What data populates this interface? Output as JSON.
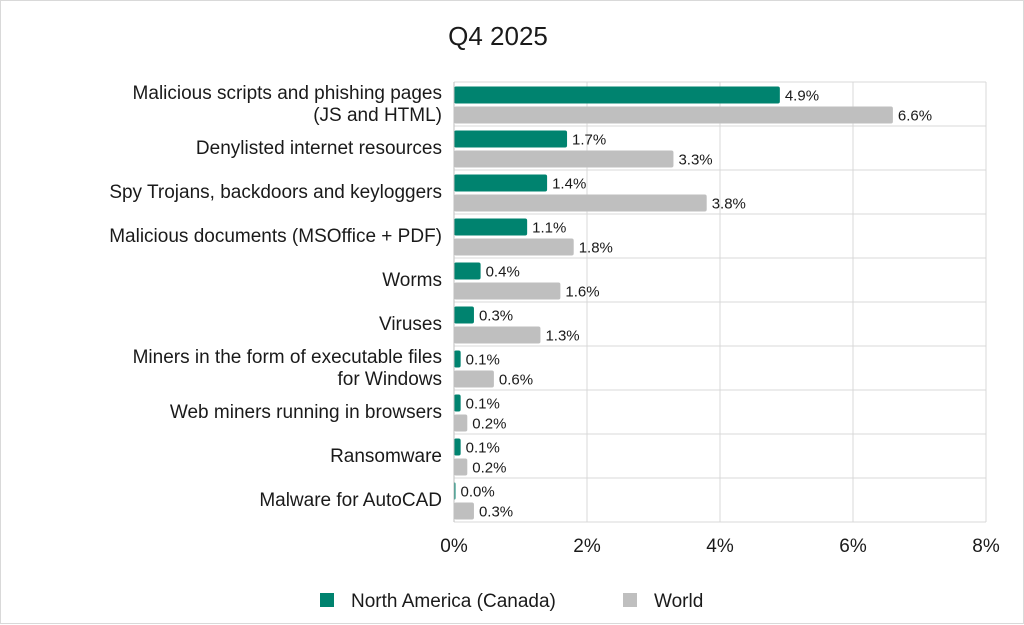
{
  "chart_data": {
    "type": "bar",
    "orientation": "horizontal",
    "title": "Q4 2025",
    "categories": [
      [
        "Malicious scripts and phishing pages",
        "(JS and HTML)"
      ],
      [
        "Denylisted internet resources"
      ],
      [
        "Spy Trojans, backdoors and keyloggers"
      ],
      [
        "Malicious documents (MSOffice + PDF)"
      ],
      [
        "Worms"
      ],
      [
        "Viruses"
      ],
      [
        "Miners in the form of executable files",
        "for Windows"
      ],
      [
        "Web miners running in browsers"
      ],
      [
        "Ransomware"
      ],
      [
        "Malware for AutoCAD"
      ]
    ],
    "series": [
      {
        "name": "North America (Canada)",
        "color": "#00836F",
        "values": [
          4.9,
          1.7,
          1.4,
          1.1,
          0.4,
          0.3,
          0.1,
          0.1,
          0.1,
          0.0
        ],
        "labels": [
          "4.9%",
          "1.7%",
          "1.4%",
          "1.1%",
          "0.4%",
          "0.3%",
          "0.1%",
          "0.1%",
          "0.1%",
          "0.0%"
        ]
      },
      {
        "name": "World",
        "color": "#BFBFBF",
        "values": [
          6.6,
          3.3,
          3.8,
          1.8,
          1.6,
          1.3,
          0.6,
          0.2,
          0.2,
          0.3
        ],
        "labels": [
          "6.6%",
          "3.3%",
          "3.8%",
          "1.8%",
          "1.6%",
          "1.3%",
          "0.6%",
          "0.2%",
          "0.2%",
          "0.3%"
        ]
      }
    ],
    "xlim": [
      0,
      8
    ],
    "xticks": [
      0,
      2,
      4,
      6,
      8
    ],
    "xtick_labels": [
      "0%",
      "2%",
      "4%",
      "6%",
      "8%"
    ],
    "grid": true,
    "legend_position": "bottom-center"
  }
}
